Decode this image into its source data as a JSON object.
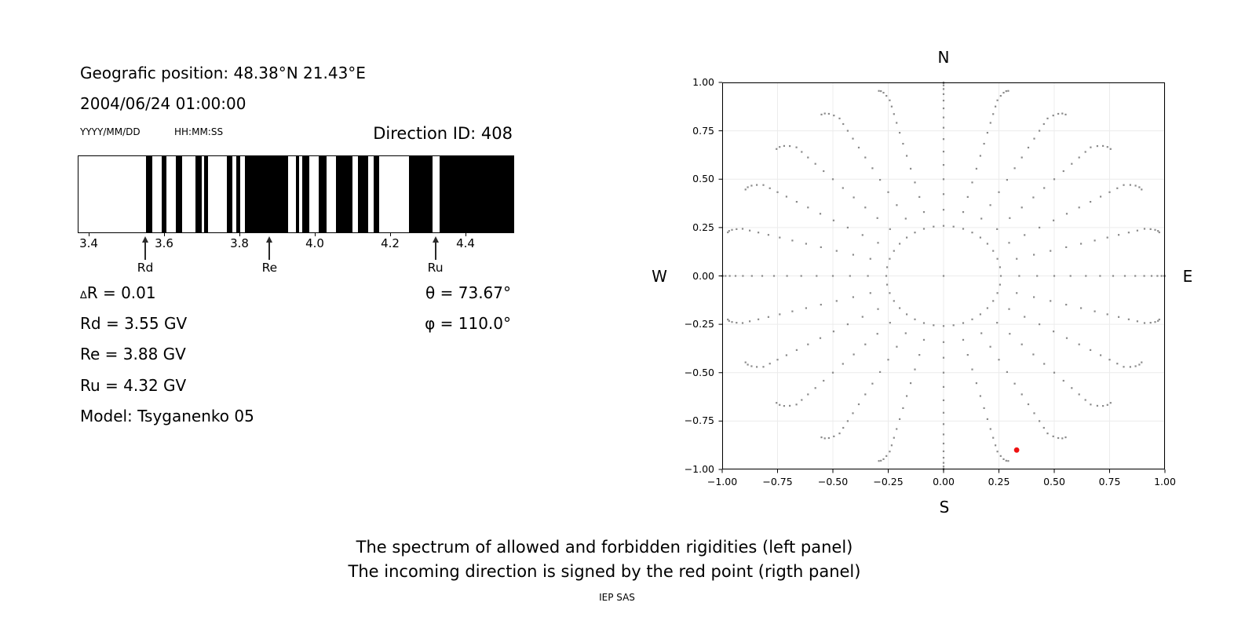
{
  "header": {
    "geographic_position": "Geografic position: 48.38°N 21.43°E",
    "datetime": "2004/06/24 01:00:00",
    "date_format_hint": "YYYY/MM/DD",
    "time_format_hint": "HH:MM:SS",
    "direction_id": "Direction ID: 408"
  },
  "info": {
    "delta_symbol": "∆",
    "delta_rest": "R = 0.01",
    "rd": "Rd = 3.55 GV",
    "re": "Re = 3.88 GV",
    "ru": "Ru = 4.32 GV",
    "model": "Model: Tsyganenko 05",
    "theta": "θ = 73.67°",
    "phi": "φ = 110.0°"
  },
  "caption": {
    "line1": "The spectrum of allowed and forbidden rigidities (left panel)",
    "line2": "The incoming direction is signed by the red point (rigth panel)",
    "credit": "IEP SAS"
  },
  "chart_data": [
    {
      "type": "bar",
      "subtype": "rigidity-spectrum-barcode",
      "description": "black = forbidden rigidities, white = allowed rigidities",
      "xlim": [
        3.373,
        4.527
      ],
      "xticks": [
        3.4,
        3.6,
        3.8,
        4.0,
        4.2,
        4.4
      ],
      "band_color": "#000000",
      "background": "#ffffff",
      "forbidden_bands_gv": [
        [
          3.552,
          3.569
        ],
        [
          3.593,
          3.606
        ],
        [
          3.632,
          3.649
        ],
        [
          3.683,
          3.701
        ],
        [
          3.707,
          3.717
        ],
        [
          3.766,
          3.781
        ],
        [
          3.792,
          3.802
        ],
        [
          3.815,
          3.929
        ],
        [
          3.949,
          3.958
        ],
        [
          3.967,
          3.985
        ],
        [
          4.01,
          4.031
        ],
        [
          4.056,
          4.101
        ],
        [
          4.115,
          4.141
        ],
        [
          4.156,
          4.17
        ],
        [
          4.249,
          4.313
        ],
        [
          4.331,
          4.527
        ]
      ],
      "markers": [
        {
          "label": "Rd",
          "gv": 3.55
        },
        {
          "label": "Re",
          "gv": 3.88
        },
        {
          "label": "Ru",
          "gv": 4.32
        }
      ]
    },
    {
      "type": "scatter",
      "subtype": "incoming-direction-sky-map",
      "xlim": [
        -1,
        1
      ],
      "ylim": [
        -1,
        1
      ],
      "xticks": [
        -1,
        -0.75,
        -0.5,
        -0.25,
        0,
        0.25,
        0.5,
        0.75,
        1
      ],
      "yticks": [
        -1,
        -0.75,
        -0.5,
        -0.25,
        0,
        0.25,
        0.5,
        0.75,
        1
      ],
      "grid": true,
      "grid_color": "#ececec",
      "dot_color": "#8a8a8a",
      "compass": {
        "top": "N",
        "right": "E",
        "bottom": "S",
        "left": "W"
      },
      "pattern": {
        "center_dot": true,
        "ring_zenith_deg": 15,
        "ring_azimuth_step_deg": 10,
        "spoke_azimuth_step_deg": 15,
        "spoke_zenith_min_deg": 20,
        "spoke_zenith_max_deg": 90,
        "spoke_zenith_step_deg": 5,
        "tip_curl_deg": 4
      },
      "red_point": {
        "x": 0.33,
        "y": -0.9,
        "color": "#ee1111"
      }
    }
  ]
}
